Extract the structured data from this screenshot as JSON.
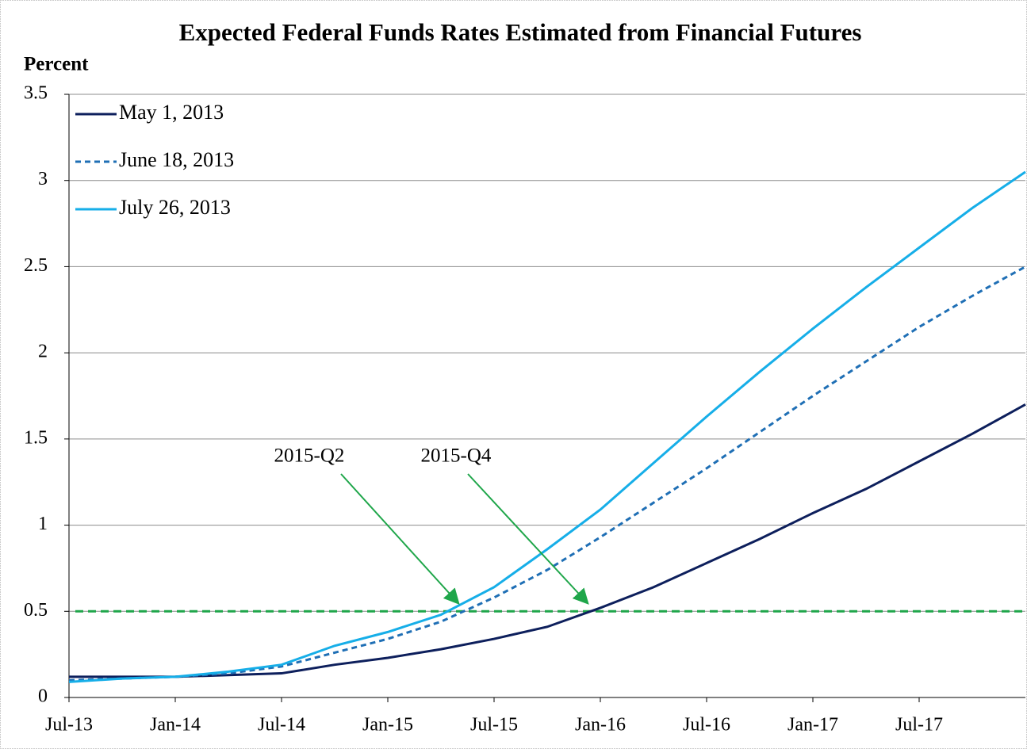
{
  "chart_data": {
    "type": "line",
    "title": "Expected Federal Funds Rates Estimated from Financial Futures",
    "y_label": "Percent",
    "categories": [
      "Jul-13",
      null,
      "Jan-14",
      null,
      "Jul-14",
      null,
      "Jan-15",
      null,
      "Jul-15",
      null,
      "Jan-16",
      null,
      "Jul-16",
      null,
      "Jan-17",
      null,
      "Jul-17",
      null,
      null
    ],
    "series": [
      {
        "name": "May 1, 2013",
        "color": "#0d1f5c",
        "dash": false,
        "values": [
          0.12,
          0.12,
          0.12,
          0.13,
          0.14,
          0.19,
          0.23,
          0.28,
          0.34,
          0.41,
          0.52,
          0.64,
          0.78,
          0.92,
          1.07,
          1.21,
          1.37,
          1.53,
          1.7
        ]
      },
      {
        "name": "June 18, 2013",
        "color": "#1f6fb5",
        "dash": true,
        "values": [
          0.1,
          0.11,
          0.12,
          0.14,
          0.18,
          0.26,
          0.34,
          0.44,
          0.58,
          0.74,
          0.93,
          1.13,
          1.33,
          1.54,
          1.75,
          1.95,
          2.15,
          2.33,
          2.5
        ]
      },
      {
        "name": "July 26, 2013",
        "color": "#16aee8",
        "dash": false,
        "values": [
          0.09,
          0.11,
          0.12,
          0.15,
          0.19,
          0.3,
          0.38,
          0.48,
          0.64,
          0.86,
          1.09,
          1.36,
          1.63,
          1.89,
          2.14,
          2.38,
          2.61,
          2.84,
          3.05
        ]
      }
    ],
    "reference_line": {
      "value": 0.5,
      "color": "#1fa64a"
    },
    "annotations": [
      "2015-Q2",
      "2015-Q4"
    ],
    "annotation_color": "#1fa64a",
    "ylim": [
      0,
      3.5
    ],
    "yticks": [
      0,
      0.5,
      1,
      1.5,
      2,
      2.5,
      3,
      3.5
    ],
    "grid": true,
    "legend": "top-left"
  }
}
